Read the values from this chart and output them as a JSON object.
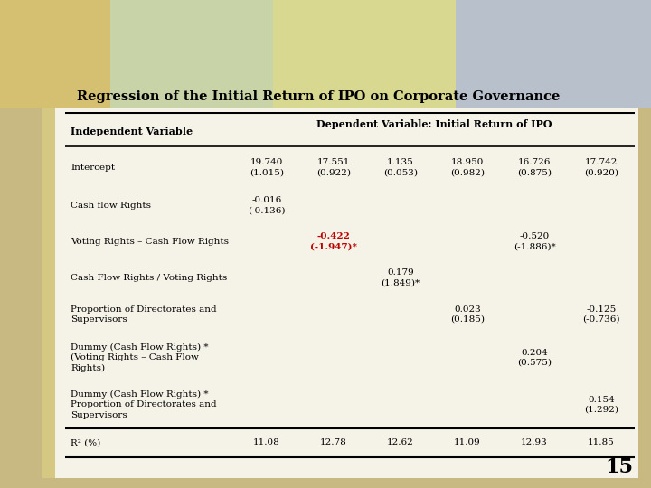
{
  "title": "Regression of the Initial Return of IPO on Corporate Governance",
  "header_col": "Independent Variable",
  "header_dep": "Dependent Variable: Initial Return of IPO",
  "page_number": "15",
  "bg_outer": "#c8b882",
  "bg_left_strip": "#d4c89a",
  "bg_content": "#f0ede0",
  "banner_colors": [
    "#d4c882",
    "#c8d4a0",
    "#e8e0a0",
    "#b8c8c0",
    "#c0c8d8"
  ],
  "rows": [
    {
      "label": "Intercept",
      "cols": [
        "19.740\n(1.015)",
        "17.551\n(0.922)",
        "1.135\n(0.053)",
        "18.950\n(0.982)",
        "16.726\n(0.875)",
        "17.742\n(0.920)"
      ],
      "red_cols": []
    },
    {
      "label": "Cash flow Rights",
      "cols": [
        "-0.016\n(-0.136)",
        "",
        "",
        "",
        "",
        ""
      ],
      "red_cols": []
    },
    {
      "label": "Voting Rights – Cash Flow Rights",
      "cols": [
        "",
        "-0.422\n(-1.947)*",
        "",
        "",
        "-0.520\n(-1.886)*",
        ""
      ],
      "red_cols": [
        1
      ]
    },
    {
      "label": "Cash Flow Rights / Voting Rights",
      "cols": [
        "",
        "",
        "0.179\n(1.849)*",
        "",
        "",
        ""
      ],
      "red_cols": []
    },
    {
      "label": "Proportion of Directorates and\nSupervisors",
      "cols": [
        "",
        "",
        "",
        "0.023\n(0.185)",
        "",
        "-0.125\n(-0.736)"
      ],
      "red_cols": []
    },
    {
      "label": "Dummy (Cash Flow Rights) *\n(Voting Rights – Cash Flow\nRights)",
      "cols": [
        "",
        "",
        "",
        "",
        "0.204\n(0.575)",
        ""
      ],
      "red_cols": []
    },
    {
      "label": "Dummy (Cash Flow Rights) *\nProportion of Directorates and\nSupervisors",
      "cols": [
        "",
        "",
        "",
        "",
        "",
        "0.154\n(1.292)"
      ],
      "red_cols": []
    },
    {
      "label": "R² (%)",
      "cols": [
        "11.08",
        "12.78",
        "12.62",
        "11.09",
        "12.93",
        "11.85"
      ],
      "red_cols": [],
      "is_footer": true
    }
  ]
}
